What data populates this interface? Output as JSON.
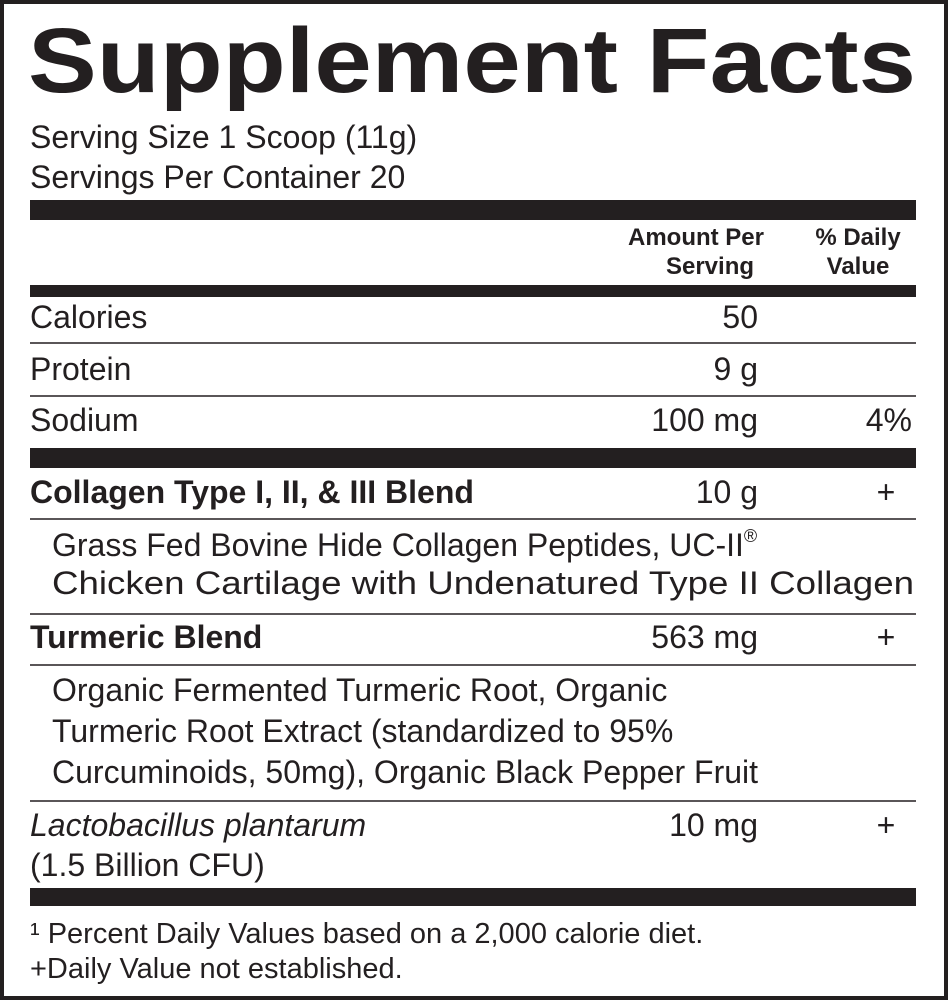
{
  "title": "Supplement Facts",
  "serving_size": "Serving Size 1 Scoop (11g)",
  "servings_per_container": "Servings Per Container 20",
  "header": {
    "amount": [
      "Amount Per",
      "Serving"
    ],
    "daily_value": [
      "% Daily",
      "Value"
    ]
  },
  "nutrients": [
    {
      "name": "Calories",
      "amount": "50"
    },
    {
      "name": "Protein",
      "amount": "9 g"
    },
    {
      "name": "Sodium",
      "amount": "100 mg",
      "daily_value": "4%"
    }
  ],
  "blends": [
    {
      "name": "Collagen Type I, II, & III Blend",
      "amount": "10 g",
      "daily_value": "+",
      "ingredients": [
        "Grass Fed Bovine Hide Collagen Peptides, UC-II",
        "Chicken Cartilage with Undenatured Type II Collagen"
      ],
      "mark": "®"
    },
    {
      "name": "Turmeric Blend",
      "amount": "563 mg",
      "daily_value": "+",
      "ingredients": [
        "Organic Fermented Turmeric Root, Organic",
        "Turmeric Root Extract (standardized to 95%",
        "Curcuminoids, 50mg), Organic Black Pepper Fruit"
      ]
    },
    {
      "name": "Lactobacillus plantarum",
      "amount": "10 mg",
      "daily_value": "+",
      "ingredients": [
        "(1.5 Billion CFU)"
      ]
    }
  ],
  "footnotes": [
    "¹ Percent Daily Values based on a 2,000 calorie diet.",
    "+Daily Value not established."
  ]
}
